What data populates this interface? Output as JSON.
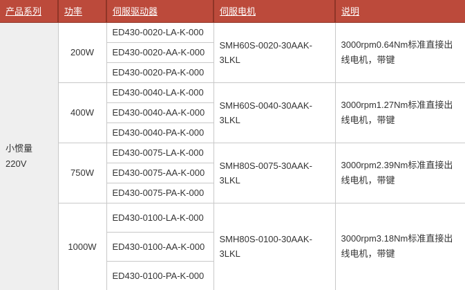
{
  "colors": {
    "header_bg": "#bc4a3b",
    "header_separator": "#8f3527",
    "header_text": "#ffffff",
    "body_border": "#c8c8c8",
    "series_bg": "#efefef",
    "body_text": "#333333"
  },
  "table": {
    "headers": [
      {
        "label": "产品系列"
      },
      {
        "label": "功率"
      },
      {
        "label": "伺服驱动器"
      },
      {
        "label": "伺服电机"
      },
      {
        "label": "说明"
      }
    ],
    "series_text": "小惯量\n220V",
    "groups": [
      {
        "power": "200W",
        "drivers": [
          "ED430-0020-LA-K-000",
          "ED430-0020-AA-K-000",
          "ED430-0020-PA-K-000"
        ],
        "motor": "SMH60S-0020-30AAK-3LKL",
        "description": "3000rpm0.64Nm标准直接出线电机，带键"
      },
      {
        "power": "400W",
        "drivers": [
          "ED430-0040-LA-K-000",
          "ED430-0040-AA-K-000",
          "ED430-0040-PA-K-000"
        ],
        "motor": "SMH60S-0040-30AAK-3LKL",
        "description": "3000rpm1.27Nm标准直接出线电机，带键"
      },
      {
        "power": "750W",
        "drivers": [
          "ED430-0075-LA-K-000",
          "ED430-0075-AA-K-000",
          "ED430-0075-PA-K-000"
        ],
        "motor": "SMH80S-0075-30AAK-3LKL",
        "description": "3000rpm2.39Nm标准直接出线电机，带键"
      },
      {
        "power": "1000W",
        "drivers": [
          "ED430-0100-LA-K-000",
          "ED430-0100-AA-K-000",
          "ED430-0100-PA-K-000"
        ],
        "motor": "SMH80S-0100-30AAK-3LKL",
        "description": "3000rpm3.18Nm标准直接出线电机，带键"
      }
    ]
  }
}
